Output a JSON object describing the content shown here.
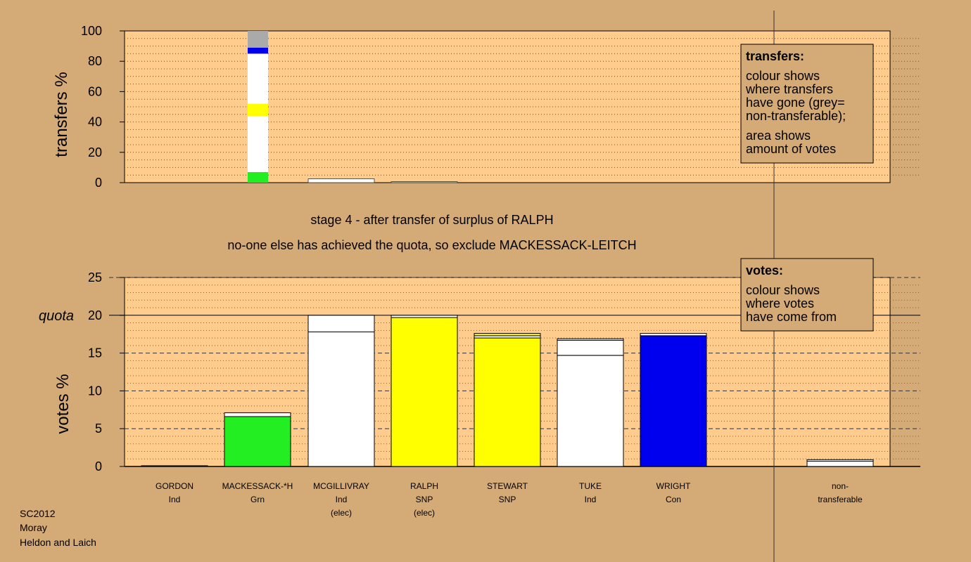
{
  "chart_data": [
    {
      "type": "bar",
      "panel": "transfers",
      "ylabel": "transfers %",
      "ylim": [
        0,
        100
      ],
      "yticks": [
        0,
        20,
        40,
        60,
        80,
        100
      ],
      "bars": [
        {
          "candidate": "MACKESSACK-*H",
          "segments": [
            {
              "color": "#22ee22",
              "from": 0,
              "to": 7
            },
            {
              "color": "#ffffff",
              "from": 7,
              "to": 44
            },
            {
              "color": "#ffff00",
              "from": 44,
              "to": 52
            },
            {
              "color": "#ffffff",
              "from": 52,
              "to": 85
            },
            {
              "color": "#0000ee",
              "from": 85,
              "to": 89
            },
            {
              "color": "#aaaaaa",
              "from": 89,
              "to": 100
            }
          ]
        },
        {
          "candidate": "MCGILLIVRAY",
          "segments": [
            {
              "color": "#ffffff",
              "from": 0,
              "to": 2.5
            }
          ]
        },
        {
          "candidate": "RALPH",
          "segments": [
            {
              "color": "#ffff00",
              "from": 0,
              "to": 0.7
            }
          ]
        }
      ],
      "legend": {
        "title": "transfers:",
        "lines1": [
          "colour shows",
          "where transfers",
          "have gone (grey=",
          "non-transferable);"
        ],
        "lines2": [
          "area shows",
          "amount of votes"
        ]
      }
    },
    {
      "type": "bar",
      "panel": "votes",
      "ylabel": "votes %",
      "ylim": [
        0,
        25
      ],
      "yticks": [
        0,
        5,
        10,
        15,
        20,
        25
      ],
      "quota": 20,
      "quota_label": "quota",
      "bars": [
        {
          "candidate": "GORDON",
          "segments": [
            {
              "color": "#ffffff",
              "from": 0,
              "to": 0.1
            }
          ]
        },
        {
          "candidate": "MACKESSACK-*H",
          "segments": [
            {
              "color": "#22ee22",
              "from": 0,
              "to": 6.6
            },
            {
              "color": "#ffffff",
              "from": 6.6,
              "to": 7.1
            }
          ]
        },
        {
          "candidate": "MCGILLIVRAY",
          "segments": [
            {
              "color": "#ffffff",
              "from": 0,
              "to": 17.8
            },
            {
              "color": "#ffffff",
              "from": 17.8,
              "to": 20.0
            }
          ]
        },
        {
          "candidate": "RALPH",
          "segments": [
            {
              "color": "#ffff00",
              "from": 0,
              "to": 19.7
            },
            {
              "color": "#ffffff",
              "from": 19.7,
              "to": 20.0
            }
          ]
        },
        {
          "candidate": "STEWART",
          "segments": [
            {
              "color": "#ffff00",
              "from": 0,
              "to": 17.0
            },
            {
              "color": "#ffffff",
              "from": 17.0,
              "to": 17.3
            },
            {
              "color": "#ffff00",
              "from": 17.3,
              "to": 17.6
            }
          ]
        },
        {
          "candidate": "TUKE",
          "segments": [
            {
              "color": "#ffffff",
              "from": 0,
              "to": 14.7
            },
            {
              "color": "#ffffff",
              "from": 14.7,
              "to": 16.7
            },
            {
              "color": "#ffffff",
              "from": 16.7,
              "to": 16.9
            }
          ]
        },
        {
          "candidate": "WRIGHT",
          "segments": [
            {
              "color": "#0000ee",
              "from": 0,
              "to": 17.3
            },
            {
              "color": "#ffffff",
              "from": 17.3,
              "to": 17.6
            }
          ]
        },
        {
          "candidate": "",
          "segments": []
        },
        {
          "candidate": "non-transferable",
          "segments": [
            {
              "color": "#ffffff",
              "from": 0,
              "to": 0.7
            },
            {
              "color": "#ffffff",
              "from": 0.7,
              "to": 0.9
            }
          ]
        }
      ],
      "candidates": [
        {
          "lines": [
            "GORDON",
            "Ind"
          ]
        },
        {
          "lines": [
            "MACKESSACK-*H",
            "Grn"
          ]
        },
        {
          "lines": [
            "MCGILLIVRAY",
            "Ind",
            "(elec)"
          ]
        },
        {
          "lines": [
            "RALPH",
            "SNP",
            "(elec)"
          ]
        },
        {
          "lines": [
            "STEWART",
            "SNP"
          ]
        },
        {
          "lines": [
            "TUKE",
            "Ind"
          ]
        },
        {
          "lines": [
            "WRIGHT",
            "Con"
          ]
        },
        {
          "lines": []
        },
        {
          "lines": [
            "non-",
            "transferable"
          ]
        }
      ],
      "legend": {
        "title": "votes:",
        "lines": [
          "colour shows",
          "where votes",
          "have come from"
        ]
      }
    }
  ],
  "stage": {
    "line1": "stage 4 - after transfer of surplus of RALPH",
    "line2": "no-one else has achieved the quota, so exclude MACKESSACK-LEITCH"
  },
  "footer": [
    "SC2012",
    "Moray",
    "Heldon and Laich"
  ]
}
